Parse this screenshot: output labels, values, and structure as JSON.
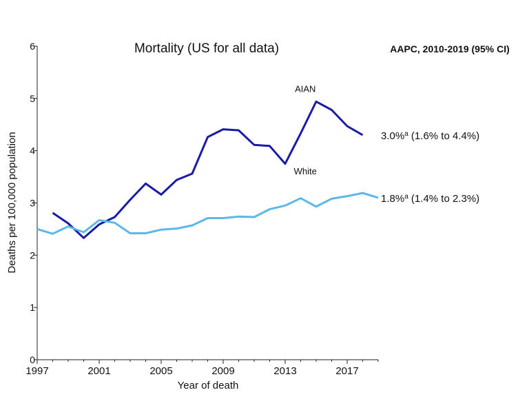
{
  "chart_data": {
    "type": "line",
    "title": "Mortality (US for all data)",
    "xlabel": "Year of death",
    "ylabel": "Deaths per 100,000 population",
    "xlim": [
      1997,
      2019
    ],
    "ylim": [
      0,
      6
    ],
    "x_ticks": [
      1997,
      2001,
      2005,
      2009,
      2013,
      2017
    ],
    "y_ticks": [
      0,
      1,
      2,
      3,
      4,
      5,
      6
    ],
    "grid": false,
    "series": [
      {
        "name": "AIAN",
        "color": "#1a1aa8",
        "x": [
          1998,
          1999,
          2000,
          2001,
          2002,
          2003,
          2004,
          2005,
          2006,
          2007,
          2008,
          2009,
          2010,
          2011,
          2012,
          2013,
          2014,
          2015,
          2016,
          2017,
          2018
        ],
        "values": [
          2.81,
          2.61,
          2.33,
          2.59,
          2.73,
          3.06,
          3.37,
          3.16,
          3.44,
          3.56,
          4.26,
          4.41,
          4.39,
          4.11,
          4.09,
          3.75,
          4.33,
          4.94,
          4.78,
          4.47,
          4.3
        ]
      },
      {
        "name": "White",
        "color": "#5bb8e8",
        "x": [
          1997,
          1998,
          1999,
          2000,
          2001,
          2002,
          2003,
          2004,
          2005,
          2006,
          2007,
          2008,
          2009,
          2010,
          2011,
          2012,
          2013,
          2014,
          2015,
          2016,
          2017,
          2018,
          2019
        ],
        "values": [
          2.5,
          2.41,
          2.55,
          2.44,
          2.67,
          2.62,
          2.42,
          2.42,
          2.49,
          2.51,
          2.57,
          2.71,
          2.71,
          2.74,
          2.73,
          2.88,
          2.95,
          3.09,
          2.93,
          3.08,
          3.13,
          3.19,
          3.1
        ]
      }
    ],
    "aapc": {
      "heading": "AAPC, 2010-2019 (95% CI)",
      "entries": [
        {
          "series": "AIAN",
          "value": "3.0%",
          "sup": "a",
          "ci": " (1.6% to 4.4%)",
          "anchor_y": 4.3
        },
        {
          "series": "White",
          "value": "1.8%",
          "sup": "a",
          "ci": " (1.4% to 2.3%)",
          "anchor_y": 3.1
        }
      ]
    },
    "series_labels": [
      {
        "text": "AIAN",
        "x": 2014.3,
        "y": 5.12
      },
      {
        "text": "White",
        "x": 2014.3,
        "y": 3.55
      }
    ]
  }
}
